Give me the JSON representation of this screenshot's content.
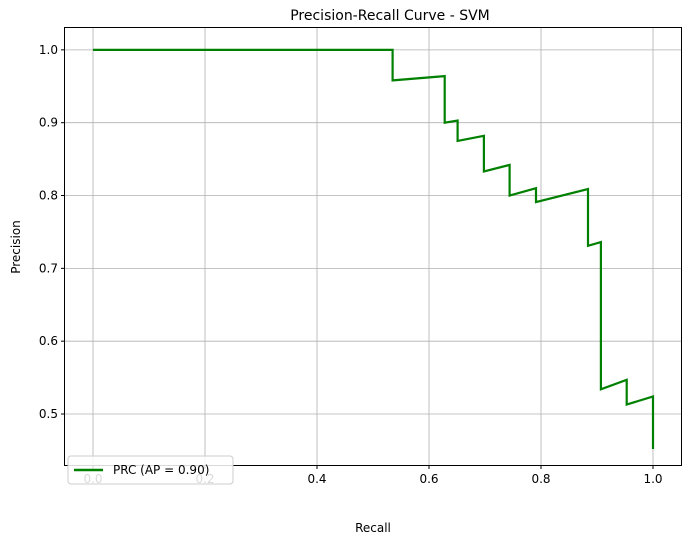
{
  "chart_data": {
    "type": "line",
    "title": "Precision-Recall Curve - SVM",
    "xlabel": "Recall",
    "ylabel": "Precision",
    "xlim": [
      -0.05,
      1.05
    ],
    "ylim": [
      0.43,
      1.03
    ],
    "xticks": [
      0.0,
      0.2,
      0.4,
      0.6,
      0.8,
      1.0
    ],
    "xtick_labels": [
      "0.0",
      "0.2",
      "0.4",
      "0.6",
      "0.8",
      "1.0"
    ],
    "yticks": [
      0.5,
      0.6,
      0.7,
      0.8,
      0.9,
      1.0
    ],
    "ytick_labels": [
      "0.5",
      "0.6",
      "0.7",
      "0.8",
      "0.9",
      "1.0"
    ],
    "grid": true,
    "legend": {
      "position": "lower-left"
    },
    "series": [
      {
        "name": "PRC (AP = 0.90)",
        "color": "#008000",
        "x": [
          0.0,
          0.535,
          0.535,
          0.628,
          0.628,
          0.651,
          0.651,
          0.698,
          0.698,
          0.744,
          0.744,
          0.791,
          0.791,
          0.884,
          0.884,
          0.907,
          0.907,
          0.953,
          0.953,
          1.0,
          1.0
        ],
        "y": [
          1.0,
          1.0,
          0.958,
          0.964,
          0.9,
          0.903,
          0.875,
          0.882,
          0.833,
          0.842,
          0.8,
          0.81,
          0.791,
          0.809,
          0.731,
          0.736,
          0.534,
          0.547,
          0.513,
          0.524,
          0.452
        ]
      }
    ]
  }
}
